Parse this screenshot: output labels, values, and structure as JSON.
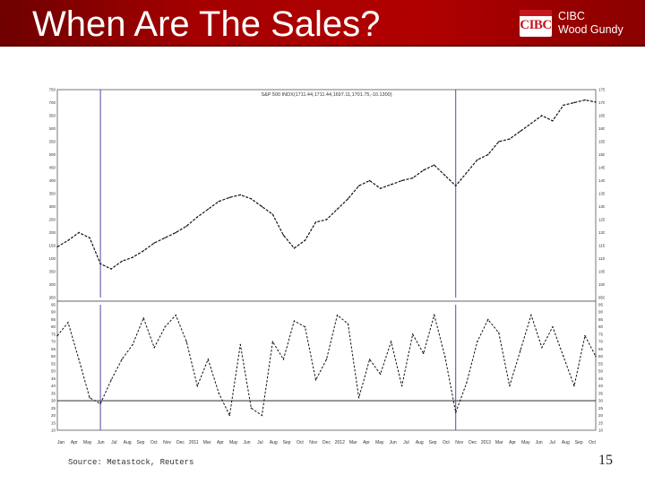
{
  "slide": {
    "title": "When Are The Sales?",
    "page_number": "15",
    "source": "Source: Metastock, Reuters",
    "colors": {
      "header_red": "#b00000",
      "cibc_red": "#c4161c",
      "vline_blue": "#3a3aa0"
    }
  },
  "logo": {
    "mark": "CIBC",
    "line1": "CIBC",
    "line2": "Wood Gundy"
  },
  "chart_data": [
    {
      "type": "line",
      "title": "S&P 500 INDX(1711.44,1711.44,1697.11,1701.75,-10.1300)",
      "ylim": [
        950,
        1750
      ],
      "yticks": [
        "1750",
        "1700",
        "1650",
        "1600",
        "1550",
        "1500",
        "1450",
        "1400",
        "1350",
        "1300",
        "1250",
        "1200",
        "1150",
        "1100",
        "1050",
        "1000",
        "950"
      ],
      "x_tick_labels": [
        "Jan",
        "Apr",
        "May",
        "Jun",
        "Jul",
        "Aug",
        "Sep",
        "Oct",
        "Nov",
        "Dec",
        "2011",
        "Mar",
        "Apr",
        "May",
        "Jun",
        "Jul",
        "Aug",
        "Sep",
        "Oct",
        "Nov",
        "Dec",
        "2012",
        "Mar",
        "Apr",
        "May",
        "Jun",
        "Jul",
        "Aug",
        "Sep",
        "Oct",
        "Nov",
        "Dec",
        "2013",
        "Mar",
        "Apr",
        "May",
        "Jun",
        "Jul",
        "Aug",
        "Sep",
        "Oct"
      ],
      "x": [
        0,
        4,
        8,
        12,
        16,
        20,
        24,
        28,
        32,
        36,
        40,
        44,
        48,
        52,
        56,
        60,
        64,
        68,
        72,
        76,
        80,
        84,
        88,
        92,
        96,
        100,
        104,
        108,
        112,
        116,
        120,
        124,
        128,
        132,
        136,
        140,
        144,
        148,
        152,
        156,
        160,
        164,
        168,
        172,
        176,
        180,
        184,
        188,
        192,
        196,
        200
      ],
      "values": [
        1145,
        1170,
        1200,
        1180,
        1080,
        1060,
        1090,
        1105,
        1130,
        1160,
        1180,
        1200,
        1225,
        1260,
        1290,
        1320,
        1335,
        1345,
        1330,
        1300,
        1270,
        1190,
        1140,
        1170,
        1240,
        1250,
        1290,
        1330,
        1380,
        1400,
        1370,
        1385,
        1400,
        1410,
        1440,
        1460,
        1420,
        1380,
        1430,
        1480,
        1500,
        1550,
        1560,
        1590,
        1620,
        1650,
        1630,
        1690,
        1700,
        1710,
        1702
      ],
      "vertical_markers_x": [
        16,
        148
      ]
    },
    {
      "type": "line",
      "title": "",
      "ylim": [
        10,
        95
      ],
      "yticks": [
        "95",
        "90",
        "85",
        "80",
        "75",
        "70",
        "65",
        "60",
        "55",
        "50",
        "45",
        "40",
        "35",
        "30",
        "25",
        "20",
        "15",
        "10"
      ],
      "reference_line": 30,
      "x": [
        0,
        4,
        8,
        12,
        16,
        20,
        24,
        28,
        32,
        36,
        40,
        44,
        48,
        52,
        56,
        60,
        64,
        68,
        72,
        76,
        80,
        84,
        88,
        92,
        96,
        100,
        104,
        108,
        112,
        116,
        120,
        124,
        128,
        132,
        136,
        140,
        144,
        148,
        152,
        156,
        160,
        164,
        168,
        172,
        176,
        180,
        184,
        188,
        192,
        196,
        200
      ],
      "values": [
        74,
        83,
        58,
        32,
        28,
        44,
        58,
        68,
        86,
        66,
        80,
        88,
        70,
        40,
        58,
        35,
        20,
        68,
        25,
        20,
        70,
        58,
        84,
        80,
        44,
        58,
        88,
        82,
        32,
        58,
        48,
        70,
        40,
        75,
        62,
        88,
        60,
        22,
        42,
        70,
        85,
        76,
        40,
        64,
        88,
        66,
        80,
        60,
        40,
        74,
        60
      ],
      "vertical_markers_x": [
        16,
        148
      ]
    }
  ]
}
